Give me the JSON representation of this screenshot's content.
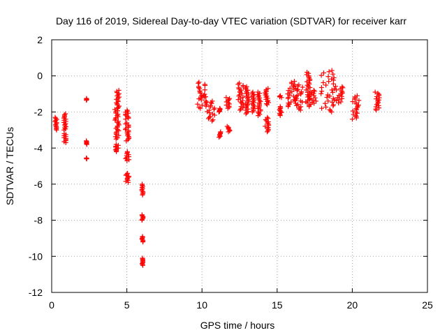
{
  "chart_data": {
    "type": "scatter",
    "title": "Day 116 of 2019, Sidereal Day-to-day VTEC variation (SDTVAR) for receiver karr",
    "xlabel": "GPS time / hours",
    "ylabel": "SDTVAR / TECUs",
    "xlim": [
      0,
      25
    ],
    "ylim": [
      -12,
      2
    ],
    "xticks": [
      0,
      5,
      10,
      15,
      20,
      25
    ],
    "xtick_labels": [
      "0",
      "5",
      "10",
      "15",
      "20",
      "25"
    ],
    "yticks": [
      -12,
      -10,
      -8,
      -6,
      -4,
      -2,
      0,
      2
    ],
    "ytick_labels": [
      "-12",
      "-10",
      "-8",
      "-6",
      "-4",
      "-2",
      "0",
      "2"
    ],
    "grid": true,
    "marker": "plus",
    "color": "#ff0000",
    "series": [
      {
        "name": "SDTVAR",
        "clusters": [
          {
            "x": [
              0.2,
              0.35
            ],
            "y": [
              -3.0,
              -2.3
            ]
          },
          {
            "x": [
              0.8,
              0.95
            ],
            "y": [
              -3.0,
              -2.1
            ]
          },
          {
            "x": [
              0.8,
              0.95
            ],
            "y": [
              -3.7,
              -3.2
            ]
          },
          {
            "x": [
              2.3,
              2.35
            ],
            "y": [
              -1.35,
              -1.25
            ]
          },
          {
            "x": [
              2.3,
              2.35
            ],
            "y": [
              -3.8,
              -3.6
            ]
          },
          {
            "x": [
              2.3,
              2.35
            ],
            "y": [
              -4.6,
              -4.55
            ]
          },
          {
            "x": [
              4.3,
              4.5
            ],
            "y": [
              -1.8,
              -0.8
            ]
          },
          {
            "x": [
              4.2,
              4.5
            ],
            "y": [
              -3.5,
              -1.8
            ]
          },
          {
            "x": [
              4.2,
              4.45
            ],
            "y": [
              -4.2,
              -3.8
            ]
          },
          {
            "x": [
              4.9,
              5.15
            ],
            "y": [
              -2.4,
              -1.9
            ]
          },
          {
            "x": [
              4.9,
              5.15
            ],
            "y": [
              -3.6,
              -2.6
            ]
          },
          {
            "x": [
              4.9,
              5.15
            ],
            "y": [
              -4.7,
              -4.2
            ]
          },
          {
            "x": [
              4.9,
              5.15
            ],
            "y": [
              -5.9,
              -5.4
            ]
          },
          {
            "x": [
              6.0,
              6.1
            ],
            "y": [
              -6.6,
              -6.0
            ]
          },
          {
            "x": [
              6.0,
              6.1
            ],
            "y": [
              -8.0,
              -7.7
            ]
          },
          {
            "x": [
              6.0,
              6.1
            ],
            "y": [
              -9.2,
              -8.9
            ]
          },
          {
            "x": [
              6.0,
              6.1
            ],
            "y": [
              -10.5,
              -10.1
            ]
          },
          {
            "x": [
              9.75,
              10.2
            ],
            "y": [
              -1.2,
              -0.35
            ]
          },
          {
            "x": [
              9.7,
              10.3
            ],
            "y": [
              -1.8,
              -1.1
            ]
          },
          {
            "x": [
              10.3,
              10.85
            ],
            "y": [
              -2.5,
              -1.4
            ]
          },
          {
            "x": [
              11.1,
              11.25
            ],
            "y": [
              -2.0,
              -1.8
            ]
          },
          {
            "x": [
              11.1,
              11.25
            ],
            "y": [
              -3.4,
              -3.1
            ]
          },
          {
            "x": [
              11.6,
              11.85
            ],
            "y": [
              -1.8,
              -1.2
            ]
          },
          {
            "x": [
              11.6,
              11.85
            ],
            "y": [
              -3.1,
              -2.8
            ]
          },
          {
            "x": [
              12.4,
              12.75
            ],
            "y": [
              -1.9,
              -0.4
            ]
          },
          {
            "x": [
              12.9,
              13.1
            ],
            "y": [
              -2.1,
              -0.6
            ]
          },
          {
            "x": [
              13.3,
              13.5
            ],
            "y": [
              -2.0,
              -0.9
            ]
          },
          {
            "x": [
              13.7,
              13.9
            ],
            "y": [
              -2.2,
              -0.9
            ]
          },
          {
            "x": [
              14.2,
              14.45
            ],
            "y": [
              -1.6,
              -0.7
            ]
          },
          {
            "x": [
              14.2,
              14.45
            ],
            "y": [
              -3.1,
              -2.3
            ]
          },
          {
            "x": [
              15.15,
              15.3
            ],
            "y": [
              -1.2,
              -1.1
            ]
          },
          {
            "x": [
              15.15,
              15.3
            ],
            "y": [
              -2.2,
              -1.7
            ]
          },
          {
            "x": [
              15.7,
              16.2
            ],
            "y": [
              -1.7,
              -0.3
            ]
          },
          {
            "x": [
              16.2,
              16.7
            ],
            "y": [
              -1.9,
              -0.5
            ]
          },
          {
            "x": [
              16.9,
              17.2
            ],
            "y": [
              -1.5,
              0.2
            ]
          },
          {
            "x": [
              17.1,
              17.6
            ],
            "y": [
              -1.7,
              -0.8
            ]
          },
          {
            "x": [
              17.9,
              18.9
            ],
            "y": [
              -2.0,
              0.3
            ]
          },
          {
            "x": [
              18.9,
              19.4
            ],
            "y": [
              -1.5,
              -0.6
            ]
          },
          {
            "x": [
              20.0,
              20.45
            ],
            "y": [
              -2.4,
              -1.1
            ]
          },
          {
            "x": [
              21.5,
              21.8
            ],
            "y": [
              -1.9,
              -0.9
            ]
          }
        ]
      }
    ]
  }
}
